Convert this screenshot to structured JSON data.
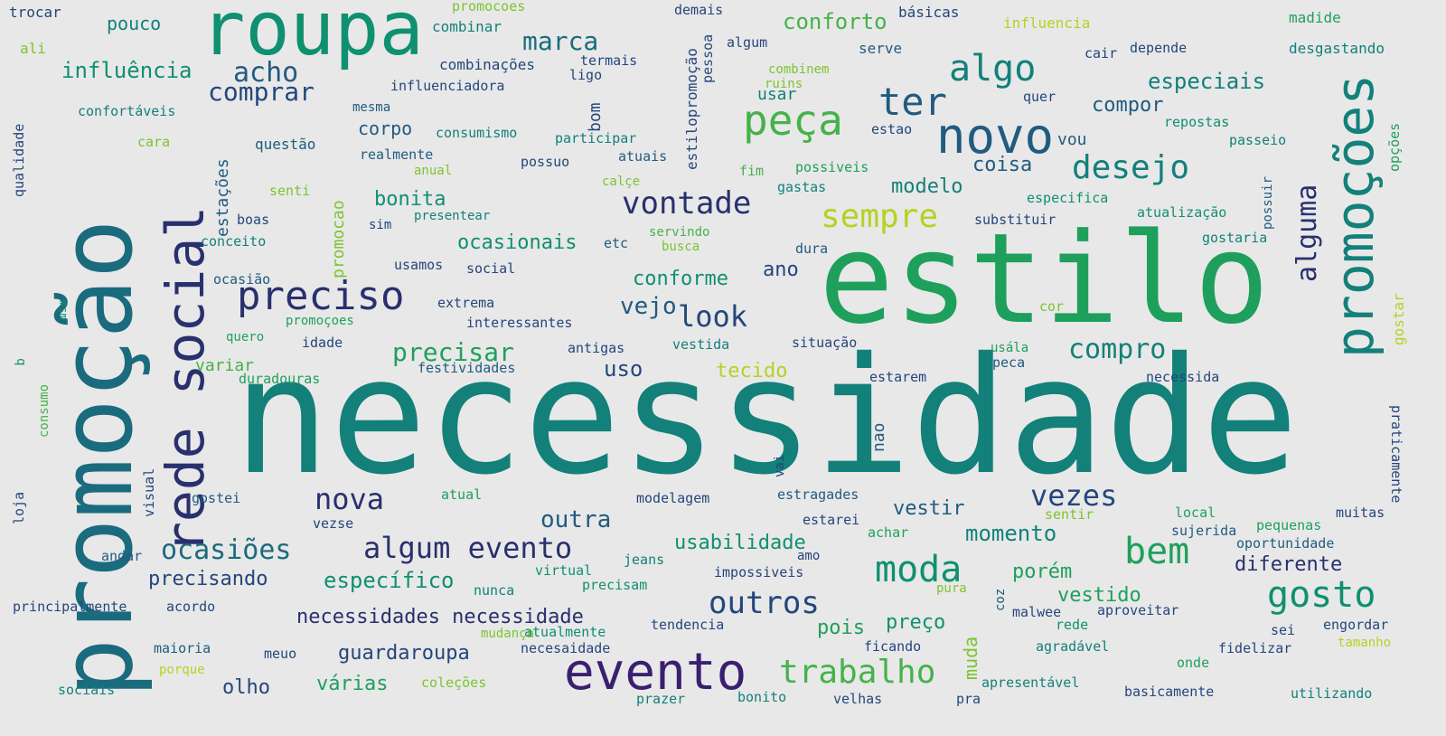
{
  "palette": {
    "c1": "#3b1f6f",
    "c2": "#28306e",
    "c3": "#24467c",
    "c4": "#215b80",
    "c5": "#1b6b7e",
    "c6": "#13807a",
    "c7": "#0f9070",
    "c8": "#1ea05c",
    "c9": "#45b24a",
    "c10": "#7cc42f",
    "c11": "#b5d223"
  },
  "words": [
    {
      "text": "necessidade",
      "color": "c6"
    },
    {
      "text": "estilo",
      "color": "c8"
    },
    {
      "text": "promoção",
      "color": "c5"
    },
    {
      "text": "roupa",
      "color": "c7"
    },
    {
      "text": "rede social",
      "color": "c2"
    },
    {
      "text": "promoções",
      "color": "c6"
    },
    {
      "text": "evento",
      "color": "c1"
    },
    {
      "text": "novo",
      "color": "c4"
    },
    {
      "text": "peça",
      "color": "c9"
    },
    {
      "text": "preciso",
      "color": "c2"
    },
    {
      "text": "algo",
      "color": "c6"
    },
    {
      "text": "ter",
      "color": "c4"
    },
    {
      "text": "desejo",
      "color": "c6"
    },
    {
      "text": "sempre",
      "color": "c11"
    },
    {
      "text": "vontade",
      "color": "c2"
    },
    {
      "text": "moda",
      "color": "c7"
    },
    {
      "text": "gosto",
      "color": "c7"
    },
    {
      "text": "bem",
      "color": "c8"
    },
    {
      "text": "trabalho",
      "color": "c9"
    },
    {
      "text": "algum evento",
      "color": "c2"
    },
    {
      "text": "outros",
      "color": "c3"
    },
    {
      "text": "nova",
      "color": "c2"
    },
    {
      "text": "vezes",
      "color": "c3"
    },
    {
      "text": "compro",
      "color": "c6"
    },
    {
      "text": "look",
      "color": "c3"
    },
    {
      "text": "ocasiões",
      "color": "c5"
    },
    {
      "text": "alguma",
      "color": "c2"
    },
    {
      "text": "acho",
      "color": "c4"
    },
    {
      "text": "comprar",
      "color": "c3"
    },
    {
      "text": "marca",
      "color": "c5"
    },
    {
      "text": "influência",
      "color": "c7"
    },
    {
      "text": "conforto",
      "color": "c9"
    },
    {
      "text": "especiais",
      "color": "c6"
    },
    {
      "text": "compor",
      "color": "c4"
    },
    {
      "text": "coisa",
      "color": "c4"
    },
    {
      "text": "modelo",
      "color": "c6"
    },
    {
      "text": "bonita",
      "color": "c7"
    },
    {
      "text": "precisar",
      "color": "c8"
    },
    {
      "text": "vejo",
      "color": "c4"
    },
    {
      "text": "conforme",
      "color": "c7"
    },
    {
      "text": "ocasionais",
      "color": "c7"
    },
    {
      "text": "ano",
      "color": "c3"
    },
    {
      "text": "uso",
      "color": "c3"
    },
    {
      "text": "tecido",
      "color": "c11"
    },
    {
      "text": "usabilidade",
      "color": "c7"
    },
    {
      "text": "momento",
      "color": "c6"
    },
    {
      "text": "outra",
      "color": "c4"
    },
    {
      "text": "específico",
      "color": "c7"
    },
    {
      "text": "precisando",
      "color": "c3"
    },
    {
      "text": "necessidades necessidade",
      "color": "c2"
    },
    {
      "text": "guardaroupa",
      "color": "c3"
    },
    {
      "text": "vestir",
      "color": "c4"
    },
    {
      "text": "porém",
      "color": "c8"
    },
    {
      "text": "diferente",
      "color": "c2"
    },
    {
      "text": "vestido",
      "color": "c8"
    },
    {
      "text": "preço",
      "color": "c7"
    },
    {
      "text": "pois",
      "color": "c8"
    },
    {
      "text": "várias",
      "color": "c8"
    },
    {
      "text": "olho",
      "color": "c3"
    },
    {
      "text": "muda",
      "color": "c10"
    },
    {
      "text": "usar",
      "color": "c6"
    },
    {
      "text": "estações",
      "color": "c4"
    },
    {
      "text": "promocao",
      "color": "c10"
    },
    {
      "text": "bom",
      "color": "c3"
    },
    {
      "text": "estilopromoção",
      "color": "c3"
    },
    {
      "text": "pessoa",
      "color": "c3"
    },
    {
      "text": "trocar",
      "color": "c3"
    },
    {
      "text": "pouco",
      "color": "c6"
    },
    {
      "text": "ali",
      "color": "c10"
    },
    {
      "text": "promocoes",
      "color": "c10"
    },
    {
      "text": "combinar",
      "color": "c6"
    },
    {
      "text": "demais",
      "color": "c3"
    },
    {
      "text": "algum",
      "color": "c3"
    },
    {
      "text": "básicas",
      "color": "c3"
    },
    {
      "text": "influencia",
      "color": "c11"
    },
    {
      "text": "madide",
      "color": "c8"
    },
    {
      "text": "serve",
      "color": "c4"
    },
    {
      "text": "cair",
      "color": "c3"
    },
    {
      "text": "depende",
      "color": "c3"
    },
    {
      "text": "desgastando",
      "color": "c6"
    },
    {
      "text": "combinações",
      "color": "c3"
    },
    {
      "text": "termais",
      "color": "c3"
    },
    {
      "text": "ligo",
      "color": "c3"
    },
    {
      "text": "combinem",
      "color": "c10"
    },
    {
      "text": "ruins",
      "color": "c10"
    },
    {
      "text": "influenciadora",
      "color": "c3"
    },
    {
      "text": "mesma",
      "color": "c4"
    },
    {
      "text": "quer",
      "color": "c3"
    },
    {
      "text": "repostas",
      "color": "c7"
    },
    {
      "text": "opções",
      "color": "c8"
    },
    {
      "text": "confortáveis",
      "color": "c6"
    },
    {
      "text": "corpo",
      "color": "c4"
    },
    {
      "text": "consumismo",
      "color": "c6"
    },
    {
      "text": "participar",
      "color": "c6"
    },
    {
      "text": "estao",
      "color": "c3"
    },
    {
      "text": "vou",
      "color": "c4"
    },
    {
      "text": "passeio",
      "color": "c6"
    },
    {
      "text": "qualidade",
      "color": "c3"
    },
    {
      "text": "cara",
      "color": "c10"
    },
    {
      "text": "questão",
      "color": "c4"
    },
    {
      "text": "realmente",
      "color": "c4"
    },
    {
      "text": "possuo",
      "color": "c3"
    },
    {
      "text": "atuais",
      "color": "c4"
    },
    {
      "text": "anual",
      "color": "c10"
    },
    {
      "text": "fim",
      "color": "c9"
    },
    {
      "text": "possiveis",
      "color": "c8"
    },
    {
      "text": "possuir",
      "color": "c4"
    },
    {
      "text": "senti",
      "color": "c10"
    },
    {
      "text": "calçe",
      "color": "c10"
    },
    {
      "text": "gastas",
      "color": "c6"
    },
    {
      "text": "especifica",
      "color": "c7"
    },
    {
      "text": "presentear",
      "color": "c6"
    },
    {
      "text": "substituir",
      "color": "c3"
    },
    {
      "text": "atualização",
      "color": "c7"
    },
    {
      "text": "boas",
      "color": "c3"
    },
    {
      "text": "sim",
      "color": "c3"
    },
    {
      "text": "servindo",
      "color": "c9"
    },
    {
      "text": "gostaria",
      "color": "c6"
    },
    {
      "text": "conceito",
      "color": "c6"
    },
    {
      "text": "etc",
      "color": "c4"
    },
    {
      "text": "busca",
      "color": "c10"
    },
    {
      "text": "dura",
      "color": "c4"
    },
    {
      "text": "usamos",
      "color": "c3"
    },
    {
      "text": "social",
      "color": "c3"
    },
    {
      "text": "ocasião",
      "color": "c4"
    },
    {
      "text": "extrema",
      "color": "c3"
    },
    {
      "text": "gostar",
      "color": "c11"
    },
    {
      "text": "msm",
      "color": "c7"
    },
    {
      "text": "cor",
      "color": "c10"
    },
    {
      "text": "promoçoes",
      "color": "c8"
    },
    {
      "text": "interessantes",
      "color": "c3"
    },
    {
      "text": "quero",
      "color": "c8"
    },
    {
      "text": "idade",
      "color": "c3"
    },
    {
      "text": "antigas",
      "color": "c3"
    },
    {
      "text": "vestida",
      "color": "c6"
    },
    {
      "text": "situação",
      "color": "c3"
    },
    {
      "text": "usála",
      "color": "c8"
    },
    {
      "text": "q",
      "color": "c7"
    },
    {
      "text": "variar",
      "color": "c9"
    },
    {
      "text": "festividades",
      "color": "c4"
    },
    {
      "text": "peca",
      "color": "c4"
    },
    {
      "text": "consumo",
      "color": "c9"
    },
    {
      "text": "duradouras",
      "color": "c8"
    },
    {
      "text": "estarem",
      "color": "c3"
    },
    {
      "text": "necessida",
      "color": "c3"
    },
    {
      "text": "nao",
      "color": "c4"
    },
    {
      "text": "vai",
      "color": "c3"
    },
    {
      "text": "praticamente",
      "color": "c3"
    },
    {
      "text": "visual",
      "color": "c3"
    },
    {
      "text": "gostei",
      "color": "c4"
    },
    {
      "text": "atual",
      "color": "c8"
    },
    {
      "text": "modelagem",
      "color": "c3"
    },
    {
      "text": "estragades",
      "color": "c4"
    },
    {
      "text": "loja",
      "color": "c3"
    },
    {
      "text": "vezse",
      "color": "c3"
    },
    {
      "text": "estarei",
      "color": "c3"
    },
    {
      "text": "achar",
      "color": "c8"
    },
    {
      "text": "sentir",
      "color": "c10"
    },
    {
      "text": "local",
      "color": "c8"
    },
    {
      "text": "muitas",
      "color": "c3"
    },
    {
      "text": "sujerida",
      "color": "c4"
    },
    {
      "text": "pequenas",
      "color": "c8"
    },
    {
      "text": "andar",
      "color": "c4"
    },
    {
      "text": "amo",
      "color": "c3"
    },
    {
      "text": "jeans",
      "color": "c6"
    },
    {
      "text": "oportunidade",
      "color": "c4"
    },
    {
      "text": "virtual",
      "color": "c7"
    },
    {
      "text": "impossiveis",
      "color": "c3"
    },
    {
      "text": "precisam",
      "color": "c7"
    },
    {
      "text": "nunca",
      "color": "c6"
    },
    {
      "text": "pura",
      "color": "c10"
    },
    {
      "text": "coz",
      "color": "c4"
    },
    {
      "text": "principalmente",
      "color": "c3"
    },
    {
      "text": "acordo",
      "color": "c3"
    },
    {
      "text": "mudança",
      "color": "c10"
    },
    {
      "text": "atualmente",
      "color": "c7"
    },
    {
      "text": "tendencia",
      "color": "c3"
    },
    {
      "text": "malwee",
      "color": "c3"
    },
    {
      "text": "aproveitar",
      "color": "c3"
    },
    {
      "text": "maioria",
      "color": "c4"
    },
    {
      "text": "meuo",
      "color": "c3"
    },
    {
      "text": "necesaidade",
      "color": "c3"
    },
    {
      "text": "ficando",
      "color": "c3"
    },
    {
      "text": "rede",
      "color": "c7"
    },
    {
      "text": "sei",
      "color": "c3"
    },
    {
      "text": "engordar",
      "color": "c3"
    },
    {
      "text": "porque",
      "color": "c11"
    },
    {
      "text": "agradável",
      "color": "c6"
    },
    {
      "text": "fidelizar",
      "color": "c3"
    },
    {
      "text": "tamanho",
      "color": "c11"
    },
    {
      "text": "onde",
      "color": "c8"
    },
    {
      "text": "coleções",
      "color": "c10"
    },
    {
      "text": "apresentável",
      "color": "c6"
    },
    {
      "text": "sociais",
      "color": "c6"
    },
    {
      "text": "prazer",
      "color": "c6"
    },
    {
      "text": "bonito",
      "color": "c6"
    },
    {
      "text": "velhas",
      "color": "c3"
    },
    {
      "text": "pra",
      "color": "c3"
    },
    {
      "text": "basicamente",
      "color": "c3"
    },
    {
      "text": "utilizando",
      "color": "c6"
    }
  ]
}
